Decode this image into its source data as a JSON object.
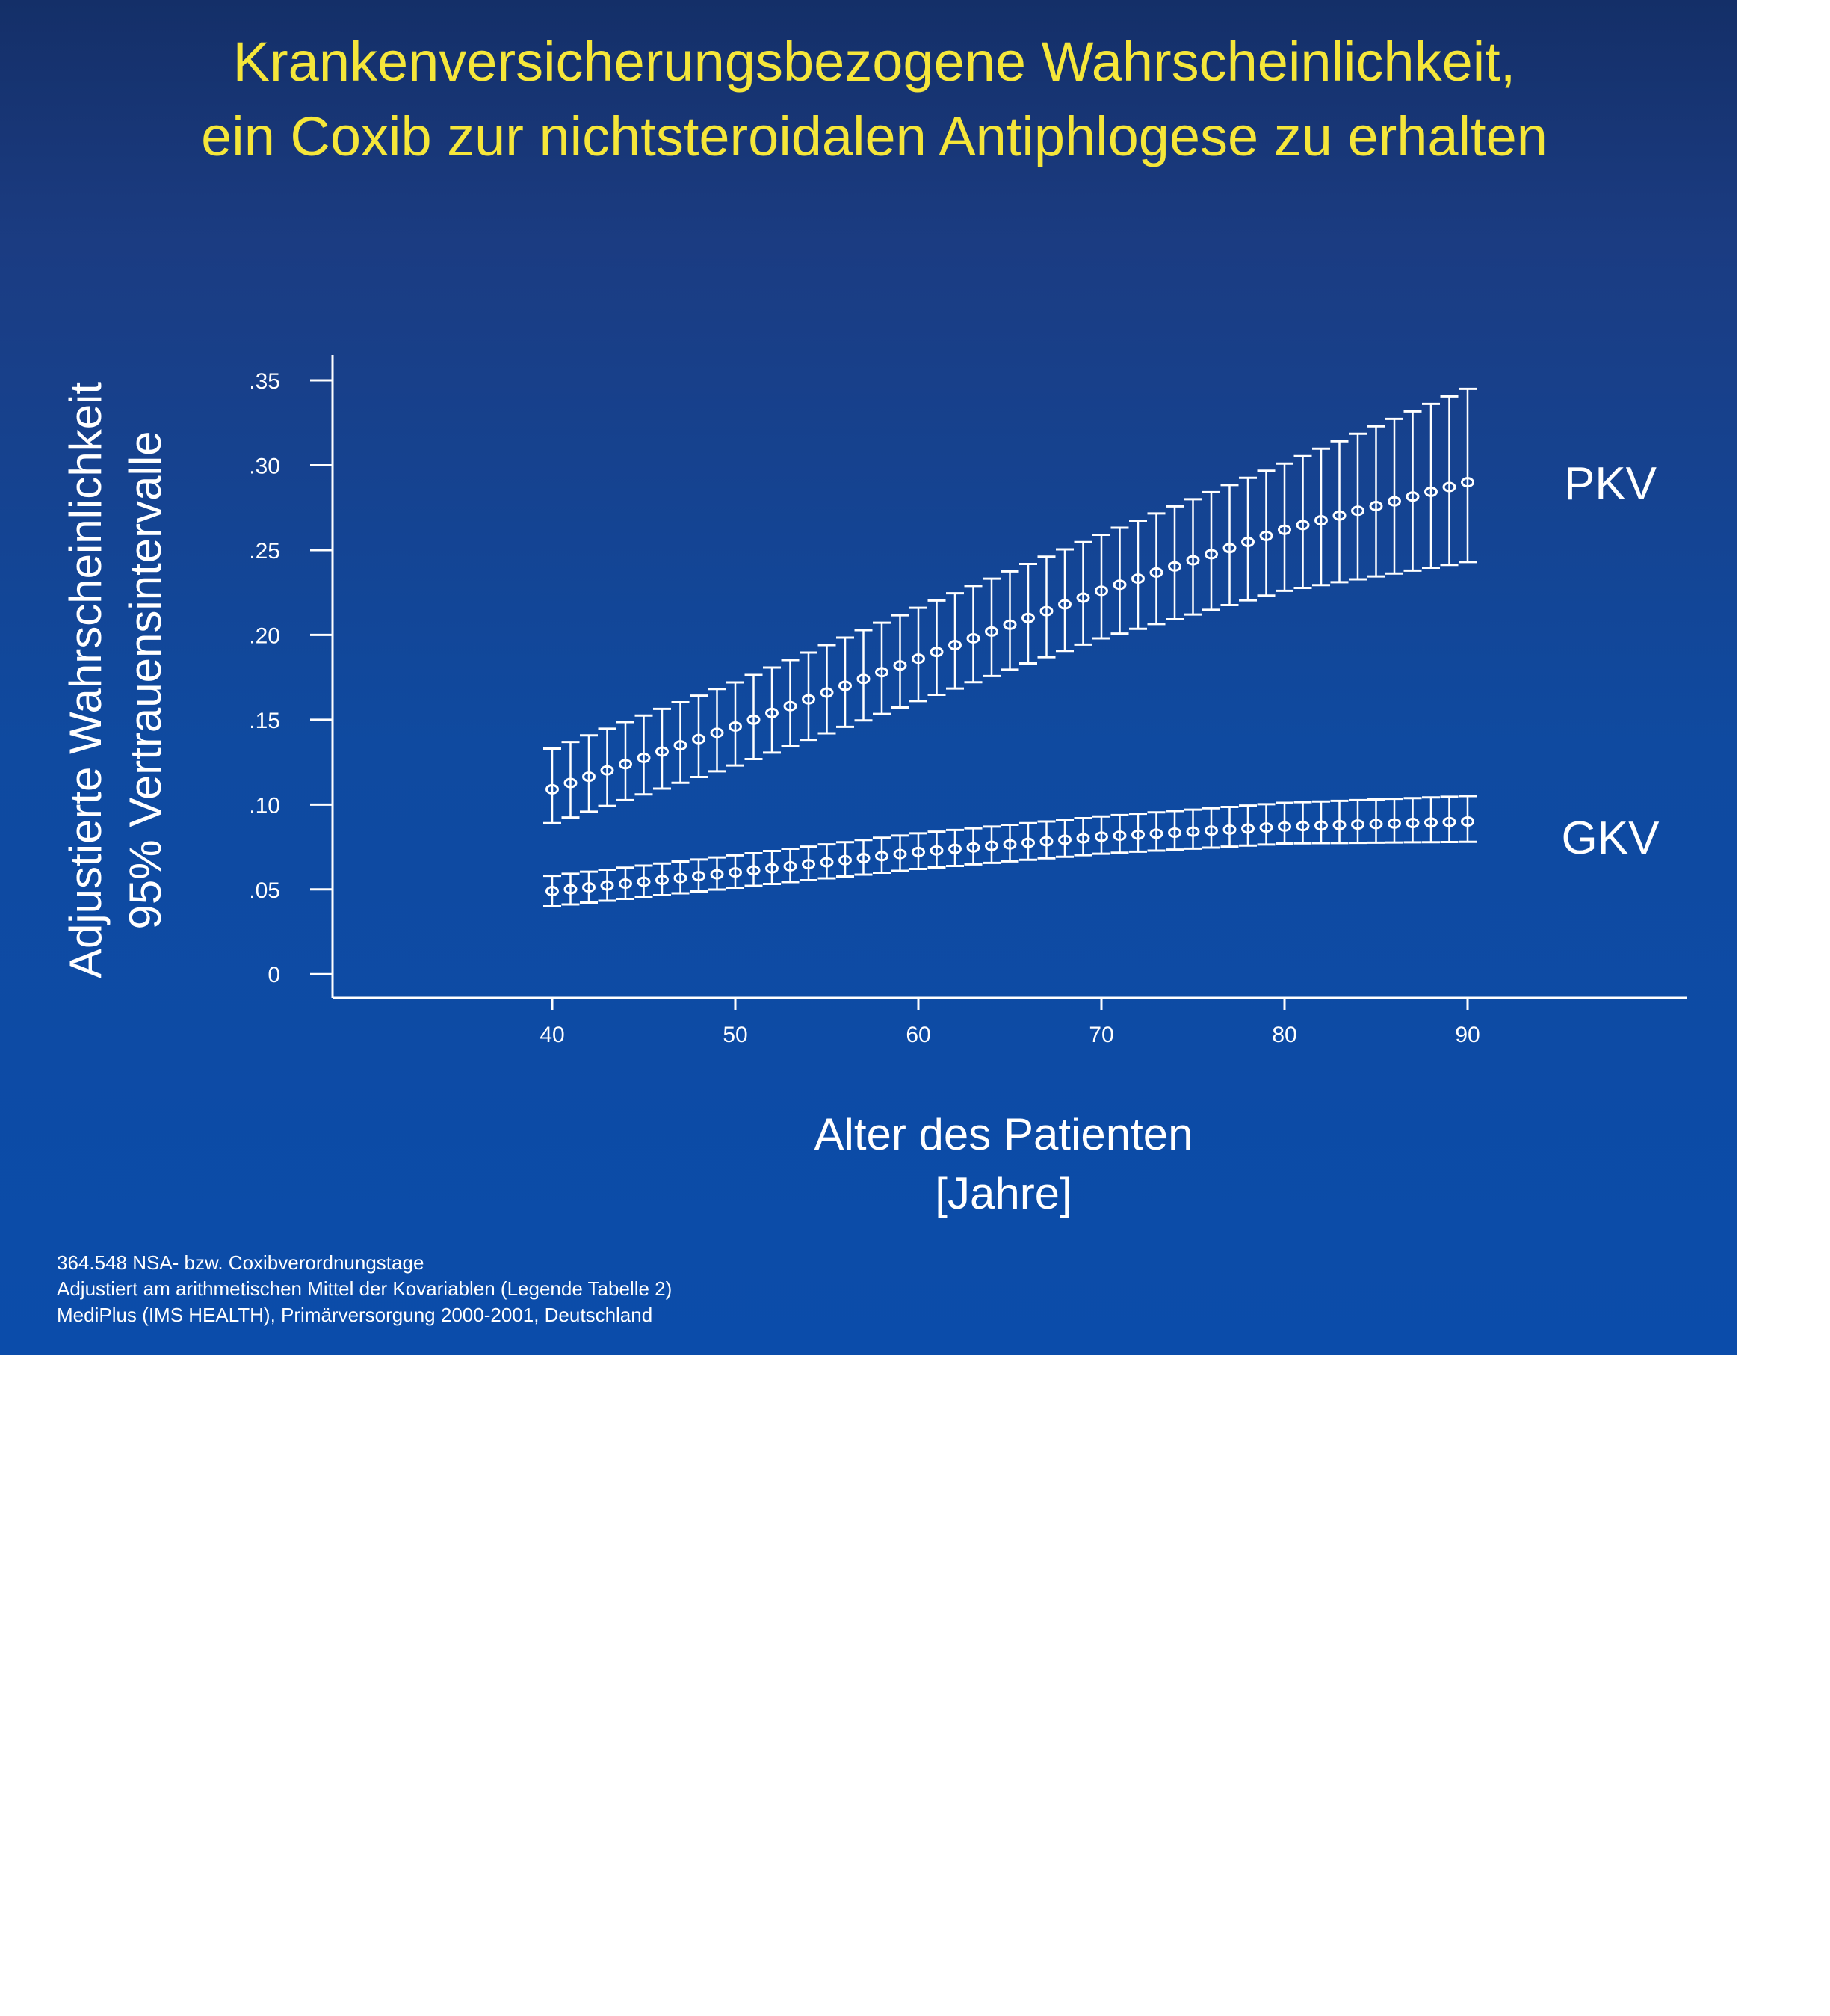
{
  "title_lines": [
    "Krankenversicherungsbezogene Wahrscheinlichkeit,",
    "ein Coxib zur nichtsteroidalen Antiphlogese zu erhalten"
  ],
  "footnotes": [
    "364.548 NSA- bzw. Coxibverordnungstage",
    "Adjustiert am arithmetischen Mittel der Kovariablen (Legende Tabelle 2)",
    "MediPlus (IMS HEALTH), Primärversorgung 2000-2001, Deutschland"
  ],
  "colors": {
    "background_top": "#142f68",
    "background_bottom": "#0b4caa",
    "title": "#f5e63a",
    "marks": "#ffffff"
  },
  "chart_data": {
    "type": "scatter",
    "style": "error-bars",
    "ylabel_lines": [
      "Adjustierte Wahrscheinlichkeit",
      "95% Vertrauensintervalle"
    ],
    "xlabel_lines": [
      "Alter des Patienten",
      "[Jahre]"
    ],
    "xlim": [
      28,
      102
    ],
    "ylim": [
      -0.014,
      0.365
    ],
    "x_ticks": [
      40,
      50,
      60,
      70,
      80,
      90
    ],
    "x_tick_labels": [
      "40",
      "50",
      "60",
      "70",
      "80",
      "90"
    ],
    "y_ticks": [
      0,
      0.05,
      0.1,
      0.15,
      0.2,
      0.25,
      0.3,
      0.35
    ],
    "y_tick_labels": [
      "0",
      ".05",
      ".10",
      ".15",
      ".20",
      ".25",
      ".30",
      ".35"
    ],
    "grid": false,
    "series": [
      {
        "name": "PKV",
        "x_range": [
          40,
          90
        ],
        "center": [
          [
            40,
            0.109
          ],
          [
            50,
            0.146
          ],
          [
            60,
            0.186
          ],
          [
            70,
            0.226
          ],
          [
            80,
            0.262
          ],
          [
            90,
            0.29
          ]
        ],
        "lower": [
          [
            40,
            0.089
          ],
          [
            50,
            0.123
          ],
          [
            60,
            0.161
          ],
          [
            70,
            0.198
          ],
          [
            80,
            0.226
          ],
          [
            90,
            0.243
          ]
        ],
        "upper": [
          [
            40,
            0.133
          ],
          [
            50,
            0.172
          ],
          [
            60,
            0.216
          ],
          [
            70,
            0.259
          ],
          [
            80,
            0.301
          ],
          [
            90,
            0.345
          ]
        ]
      },
      {
        "name": "GKV",
        "x_range": [
          40,
          90
        ],
        "center": [
          [
            40,
            0.049
          ],
          [
            50,
            0.06
          ],
          [
            60,
            0.072
          ],
          [
            70,
            0.081
          ],
          [
            80,
            0.087
          ],
          [
            90,
            0.09
          ]
        ],
        "lower": [
          [
            40,
            0.04
          ],
          [
            50,
            0.051
          ],
          [
            60,
            0.062
          ],
          [
            70,
            0.071
          ],
          [
            80,
            0.077
          ],
          [
            90,
            0.078
          ]
        ],
        "upper": [
          [
            40,
            0.058
          ],
          [
            50,
            0.07
          ],
          [
            60,
            0.083
          ],
          [
            70,
            0.093
          ],
          [
            80,
            0.101
          ],
          [
            90,
            0.105
          ]
        ]
      }
    ]
  }
}
